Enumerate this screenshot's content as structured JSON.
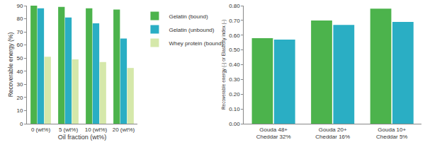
{
  "chart_data": [
    {
      "type": "bar",
      "xlabel": "Oil fraction (wt%)",
      "ylabel": "Recoverable energy (%)",
      "categories": [
        "0 (wt%)",
        "5 (wt%)",
        "10 (wt%)",
        "20 (wt%)"
      ],
      "series": [
        {
          "name": "Gelatin (bound)",
          "color": "#4cb34c",
          "values": [
            90,
            89,
            88,
            87
          ]
        },
        {
          "name": "Gelatin (unbound)",
          "color": "#2aaec4",
          "values": [
            88,
            81,
            76.5,
            65
          ]
        },
        {
          "name": "Whey protein (bound)",
          "color": "#d5e8aa",
          "values": [
            51,
            49,
            47,
            42.5
          ]
        }
      ],
      "ylim": [
        0,
        90
      ],
      "yticks": [
        0,
        10,
        20,
        30,
        40,
        50,
        60,
        70,
        80,
        90
      ],
      "grid": false,
      "legend": "right"
    },
    {
      "type": "bar",
      "ylabel": "Recoverable energy (-) or Elasticity index (-)",
      "categories": [
        [
          "Gouda 48+",
          "Cheddar 32%"
        ],
        [
          "Gouda 20+",
          "Cheddar 16%"
        ],
        [
          "Gouda 10+",
          "Cheddar 5%"
        ]
      ],
      "series": [
        {
          "color": "#4cb34c",
          "values": [
            0.58,
            0.7,
            0.78
          ]
        },
        {
          "color": "#2aaec4",
          "values": [
            0.57,
            0.67,
            0.69
          ]
        }
      ],
      "ylim": [
        0,
        0.8
      ],
      "yticks": [
        {
          "value": 0,
          "label": "0.00"
        },
        {
          "value": 0.1,
          "label": "0.10"
        },
        {
          "value": 0.2,
          "label": "0.20"
        },
        {
          "value": 0.3,
          "label": "0.30"
        },
        {
          "value": 0.4,
          "label": "0.40"
        },
        {
          "value": 0.5,
          "label": "0.50"
        },
        {
          "value": 0.6,
          "label": "0.60"
        },
        {
          "value": 0.7,
          "label": "0.70"
        },
        {
          "value": 0.8,
          "label": "0.80"
        }
      ],
      "grid": false
    }
  ]
}
